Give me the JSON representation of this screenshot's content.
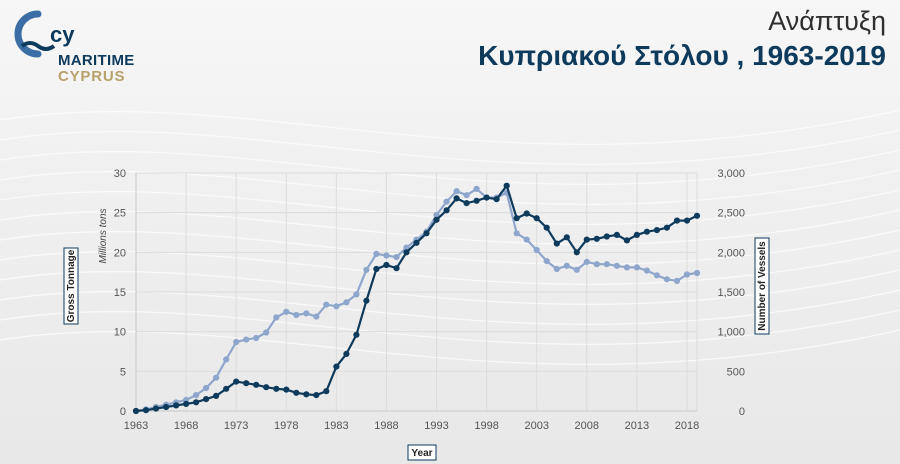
{
  "header": {
    "title_line1": "Ανάπτυξη",
    "title_line2": "Κυπριακού Στόλου , 1963-2019"
  },
  "logo": {
    "mark": "cy",
    "line1": "MARITIME",
    "line2": "CYPRUS"
  },
  "colors": {
    "gross_tonnage": "#0e3a5c",
    "vessels": "#8fa6cc",
    "grid": "#dcdcdc"
  },
  "chart_data": {
    "type": "line",
    "title": "",
    "xlabel": "Year",
    "ylabel": "Gross Tonnage",
    "ylabel_unit": "Millions tons",
    "y2label": "Number of Vessels",
    "xlim": [
      1963,
      2019
    ],
    "ylim": [
      0,
      30
    ],
    "y2lim": [
      0,
      3000
    ],
    "grid": true,
    "x_ticks": [
      "1963",
      "1968",
      "1973",
      "1978",
      "1983",
      "1988",
      "1993",
      "1998",
      "2003",
      "2008",
      "2013",
      "2018"
    ],
    "y_ticks": [
      "0",
      "5",
      "10",
      "15",
      "20",
      "25",
      "30"
    ],
    "y2_ticks": [
      "0",
      "500",
      "1,000",
      "1,500",
      "2,000",
      "2,500",
      "3,000"
    ],
    "x": [
      1963,
      1964,
      1965,
      1966,
      1967,
      1968,
      1969,
      1970,
      1971,
      1972,
      1973,
      1974,
      1975,
      1976,
      1977,
      1978,
      1979,
      1980,
      1981,
      1982,
      1983,
      1984,
      1985,
      1986,
      1987,
      1988,
      1989,
      1990,
      1991,
      1992,
      1993,
      1994,
      1995,
      1996,
      1997,
      1998,
      1999,
      2000,
      2001,
      2002,
      2003,
      2004,
      2005,
      2006,
      2007,
      2008,
      2009,
      2010,
      2011,
      2012,
      2013,
      2014,
      2015,
      2016,
      2017,
      2018,
      2019
    ],
    "series": [
      {
        "axis": "left",
        "values": [
          0.0,
          0.1,
          0.3,
          0.5,
          0.7,
          0.9,
          1.1,
          1.5,
          1.9,
          2.8,
          3.7,
          3.5,
          3.3,
          3.0,
          2.8,
          2.7,
          2.3,
          2.1,
          2.0,
          2.5,
          5.6,
          7.2,
          9.6,
          13.9,
          17.9,
          18.4,
          18.0,
          20.0,
          21.2,
          22.4,
          24.1,
          25.3,
          26.8,
          26.2,
          26.5,
          26.9,
          26.7,
          28.4,
          24.3,
          24.9,
          24.3,
          23.1,
          21.1,
          21.9,
          20.0,
          21.6,
          21.7,
          22.0,
          22.2,
          21.5,
          22.2,
          22.6,
          22.8,
          23.1,
          24.0,
          24.0,
          24.6
        ]
      },
      {
        "axis": "right",
        "values": [
          0,
          20,
          50,
          80,
          110,
          140,
          200,
          290,
          420,
          650,
          870,
          900,
          920,
          990,
          1180,
          1250,
          1210,
          1230,
          1190,
          1340,
          1320,
          1370,
          1470,
          1780,
          1980,
          1960,
          1940,
          2060,
          2160,
          2260,
          2470,
          2640,
          2770,
          2720,
          2800,
          2690,
          2690,
          2750,
          2240,
          2160,
          2030,
          1890,
          1790,
          1830,
          1780,
          1880,
          1850,
          1850,
          1830,
          1810,
          1810,
          1770,
          1710,
          1660,
          1640,
          1720,
          1740
        ]
      }
    ]
  }
}
